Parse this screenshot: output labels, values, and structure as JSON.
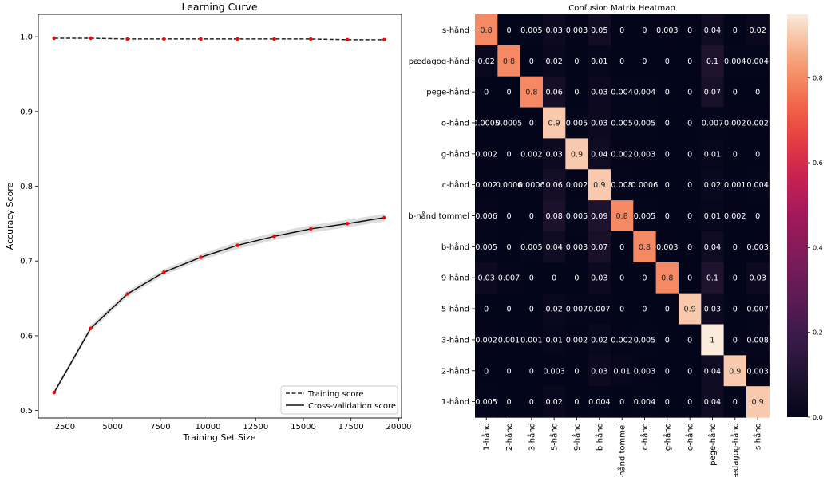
{
  "chart_data": [
    {
      "type": "line",
      "title": "Learning Curve",
      "xlabel": "Training Set Size",
      "ylabel": "Accuracy Score",
      "xlim": [
        1100,
        20150
      ],
      "ylim": [
        0.49,
        1.03
      ],
      "x_ticks": [
        2500,
        5000,
        7500,
        10000,
        12500,
        15000,
        17500,
        20000
      ],
      "y_ticks": [
        0.5,
        0.6,
        0.7,
        0.8,
        0.9,
        1.0
      ],
      "x": [
        1930,
        3850,
        5770,
        7690,
        9620,
        11550,
        13470,
        15390,
        17310,
        19240
      ],
      "series": [
        {
          "name": "Training score",
          "style": "dashed",
          "color": "#222222",
          "values": [
            0.998,
            0.998,
            0.997,
            0.997,
            0.997,
            0.997,
            0.997,
            0.997,
            0.996,
            0.996
          ]
        },
        {
          "name": "Cross-validation score",
          "style": "solid",
          "color": "#111111",
          "values": [
            0.524,
            0.61,
            0.656,
            0.685,
            0.705,
            0.721,
            0.733,
            0.743,
            0.75,
            0.758
          ]
        }
      ],
      "band_color": "#dddddd",
      "marker_color": "#ff0000",
      "legend_position": "lower right",
      "grid": false
    },
    {
      "type": "heatmap",
      "title": "Confusion Matrix Heatmap",
      "rows": [
        "s-hånd",
        "pædagog-hånd",
        "pege-hånd",
        "o-hånd",
        "g-hånd",
        "c-hånd",
        "b-hånd tommel",
        "b-hånd",
        "9-hånd",
        "5-hånd",
        "3-hånd",
        "2-hånd",
        "1-hånd"
      ],
      "cols": [
        "1-hånd",
        "2-hånd",
        "3-hånd",
        "5-hånd",
        "9-hånd",
        "b-hånd",
        "b-hånd tommel",
        "c-hånd",
        "g-hånd",
        "o-hånd",
        "pege-hånd",
        "pædagog-hånd",
        "s-hånd"
      ],
      "values": [
        [
          "0.8",
          "0",
          "0.005",
          "0.03",
          "0.003",
          "0.05",
          "0",
          "0",
          "0.003",
          "0",
          "0.04",
          "0",
          "0.02"
        ],
        [
          "0.02",
          "0.8",
          "0",
          "0.02",
          "0",
          "0.01",
          "0",
          "0",
          "0",
          "0",
          "0.1",
          "0.004",
          "0.004"
        ],
        [
          "0",
          "0",
          "0.8",
          "0.06",
          "0",
          "0.03",
          "0.004",
          "0.004",
          "0",
          "0",
          "0.07",
          "0",
          "0"
        ],
        [
          "0.0005",
          "0.0005",
          "0",
          "0.9",
          "0.005",
          "0.03",
          "0.005",
          "0.005",
          "0",
          "0",
          "0.007",
          "0.002",
          "0.002"
        ],
        [
          "0.002",
          "0",
          "0.002",
          "0.03",
          "0.9",
          "0.04",
          "0.002",
          "0.003",
          "0",
          "0",
          "0.01",
          "0",
          "0"
        ],
        [
          "0.002",
          "0.0006",
          "0.0006",
          "0.06",
          "0.002",
          "0.9",
          "0.008",
          "0.0006",
          "0",
          "0",
          "0.02",
          "0.001",
          "0.004"
        ],
        [
          "0.006",
          "0",
          "0",
          "0.08",
          "0.005",
          "0.09",
          "0.8",
          "0.005",
          "0",
          "0",
          "0.01",
          "0.002",
          "0"
        ],
        [
          "0.005",
          "0",
          "0.005",
          "0.04",
          "0.003",
          "0.07",
          "0",
          "0.8",
          "0.003",
          "0",
          "0.04",
          "0",
          "0.003"
        ],
        [
          "0.03",
          "0.007",
          "0",
          "0",
          "0",
          "0.03",
          "0",
          "0",
          "0.8",
          "0",
          "0.1",
          "0",
          "0.03"
        ],
        [
          "0",
          "0",
          "0",
          "0.02",
          "0.007",
          "0.007",
          "0",
          "0",
          "0",
          "0.9",
          "0.03",
          "0",
          "0.007"
        ],
        [
          "0.002",
          "0.001",
          "0.001",
          "0.01",
          "0.002",
          "0.02",
          "0.002",
          "0.005",
          "0",
          "0",
          "1",
          "0",
          "0.008"
        ],
        [
          "0",
          "0",
          "0",
          "0.003",
          "0",
          "0.03",
          "0.01",
          "0.003",
          "0",
          "0",
          "0.04",
          "0.9",
          "0.003"
        ],
        [
          "0.005",
          "0",
          "0",
          "0.02",
          "0",
          "0.004",
          "0",
          "0.004",
          "0",
          "0",
          "0.04",
          "0",
          "0.9"
        ]
      ],
      "colorbar": {
        "min": 0,
        "max": 0.95,
        "ticks": [
          "0.0",
          "0.2",
          "0.4",
          "0.6",
          "0.8"
        ]
      },
      "colormap": "rocket"
    }
  ]
}
